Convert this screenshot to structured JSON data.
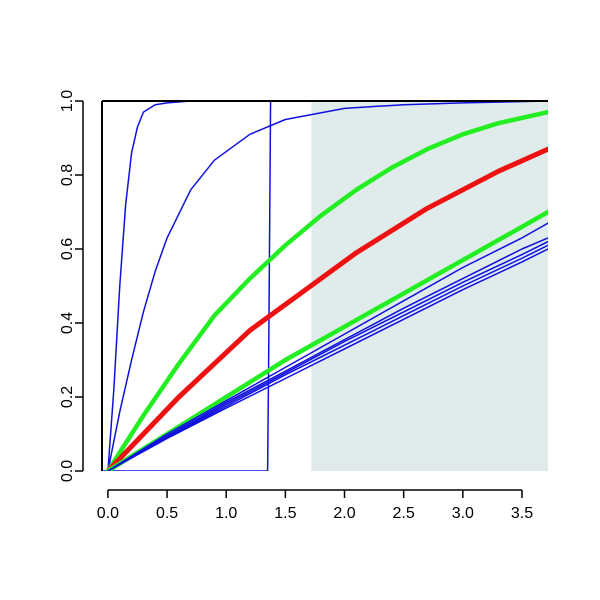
{
  "chart_data": {
    "type": "line",
    "title": "",
    "xlabel": "",
    "ylabel": "",
    "xlim": [
      -0.05,
      3.72
    ],
    "ylim": [
      0.0,
      1.0
    ],
    "xticks": [
      0.0,
      0.5,
      1.0,
      1.5,
      2.0,
      2.5,
      3.0,
      3.5
    ],
    "xtick_labels": [
      "0.0",
      "0.5",
      "1.0",
      "1.5",
      "2.0",
      "2.5",
      "3.0",
      "3.5"
    ],
    "yticks": [
      0.0,
      0.2,
      0.4,
      0.6,
      0.8,
      1.0
    ],
    "ytick_labels": [
      "0.0",
      "0.2",
      "0.4",
      "0.6",
      "0.8",
      "1.0"
    ],
    "grid": false,
    "shaded_region": {
      "x": [
        1.72,
        3.72
      ],
      "y": [
        0.0,
        1.0
      ],
      "color": "#e0eceb"
    },
    "colors": {
      "blue": "#1010e0",
      "green": "#22ee22",
      "red": "#ee1111"
    },
    "series": [
      {
        "color": "#1010e0",
        "stroke": 1.5,
        "x": [
          0,
          0.05,
          0.1,
          0.15,
          0.2,
          0.25,
          0.3,
          0.4,
          0.5,
          0.7,
          1.0,
          3.72
        ],
        "y": [
          0,
          0.22,
          0.5,
          0.72,
          0.86,
          0.93,
          0.97,
          0.99,
          0.995,
          1.0,
          1.0,
          1.0
        ]
      },
      {
        "color": "#1010e0",
        "stroke": 1.5,
        "x": [
          0,
          0.1,
          0.2,
          0.3,
          0.4,
          0.5,
          0.7,
          0.9,
          1.2,
          1.5,
          2.0,
          2.5,
          3.0,
          3.72
        ],
        "y": [
          0,
          0.16,
          0.3,
          0.43,
          0.54,
          0.63,
          0.76,
          0.84,
          0.91,
          0.95,
          0.98,
          0.99,
          0.995,
          1.0
        ]
      },
      {
        "color": "#1010e0",
        "stroke": 1.5,
        "x": [
          -0.05,
          1.35,
          1.36,
          1.375,
          1.4,
          3.72
        ],
        "y": [
          0.0,
          0.0,
          0.35,
          1.0,
          1.0,
          1.0
        ]
      },
      {
        "color": "#22ee22",
        "stroke": 4.5,
        "x": [
          0,
          0.3,
          0.6,
          0.9,
          1.2,
          1.5,
          1.8,
          2.1,
          2.4,
          2.7,
          3.0,
          3.3,
          3.72
        ],
        "y": [
          0,
          0.15,
          0.29,
          0.42,
          0.52,
          0.61,
          0.69,
          0.76,
          0.82,
          0.87,
          0.91,
          0.94,
          0.97
        ]
      },
      {
        "color": "#ee1111",
        "stroke": 5,
        "x": [
          0,
          0.3,
          0.6,
          0.9,
          1.2,
          1.5,
          1.8,
          2.1,
          2.4,
          2.7,
          3.0,
          3.3,
          3.72
        ],
        "y": [
          0,
          0.1,
          0.2,
          0.29,
          0.38,
          0.45,
          0.52,
          0.59,
          0.65,
          0.71,
          0.76,
          0.81,
          0.87
        ]
      },
      {
        "color": "#22ee22",
        "stroke": 4.5,
        "x": [
          0,
          0.5,
          1.0,
          1.5,
          2.0,
          2.5,
          3.0,
          3.5,
          3.72
        ],
        "y": [
          0,
          0.1,
          0.2,
          0.3,
          0.39,
          0.48,
          0.57,
          0.66,
          0.7
        ]
      },
      {
        "color": "#1010e0",
        "stroke": 1.5,
        "x": [
          0,
          0.5,
          1.0,
          1.5,
          2.0,
          2.5,
          3.0,
          3.5,
          3.72
        ],
        "y": [
          0,
          0.1,
          0.19,
          0.28,
          0.37,
          0.46,
          0.55,
          0.63,
          0.67
        ]
      },
      {
        "color": "#1010e0",
        "stroke": 1.5,
        "x": [
          0,
          0.5,
          1.0,
          1.5,
          2.0,
          2.5,
          3.0,
          3.5,
          3.72
        ],
        "y": [
          0,
          0.095,
          0.185,
          0.27,
          0.355,
          0.44,
          0.52,
          0.6,
          0.63
        ]
      },
      {
        "color": "#1010e0",
        "stroke": 1.5,
        "x": [
          0,
          0.5,
          1.0,
          1.5,
          2.0,
          2.5,
          3.0,
          3.5,
          3.72
        ],
        "y": [
          0,
          0.092,
          0.18,
          0.265,
          0.35,
          0.43,
          0.51,
          0.585,
          0.62
        ]
      },
      {
        "color": "#1010e0",
        "stroke": 1.5,
        "x": [
          0,
          0.5,
          1.0,
          1.5,
          2.0,
          2.5,
          3.0,
          3.5,
          3.72
        ],
        "y": [
          0,
          0.09,
          0.175,
          0.26,
          0.34,
          0.42,
          0.5,
          0.575,
          0.61
        ]
      },
      {
        "color": "#1010e0",
        "stroke": 1.5,
        "x": [
          0,
          0.5,
          1.0,
          1.5,
          2.0,
          2.5,
          3.0,
          3.5,
          3.72
        ],
        "y": [
          0,
          0.088,
          0.17,
          0.25,
          0.33,
          0.41,
          0.49,
          0.565,
          0.6
        ]
      }
    ]
  }
}
